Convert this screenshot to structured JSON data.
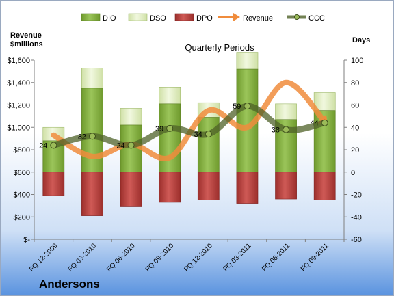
{
  "chart_data": {
    "type": "bar",
    "title": "Quarterly Periods",
    "company": "Andersons",
    "left_axis_label": [
      "Revenue",
      "$millions"
    ],
    "right_axis_label": "Days",
    "categories": [
      "FQ 12-2009",
      "FQ 03-2010",
      "FQ 06-2010",
      "FQ 09-2010",
      "FQ 12-2010",
      "FQ 03-2011",
      "FQ 06-2011",
      "FQ 09-2011"
    ],
    "left_axis": {
      "min": 0,
      "max": 1600,
      "step": 200,
      "tick_labels": [
        "$-",
        "$200",
        "$400",
        "$600",
        "$800",
        "$1,000",
        "$1,200",
        "$1,400",
        "$1,600"
      ]
    },
    "right_axis": {
      "min": -60,
      "max": 100,
      "step": 20,
      "tick_labels": [
        "-60",
        "-40",
        "-20",
        "0",
        "20",
        "40",
        "60",
        "80",
        "100"
      ]
    },
    "legend": {
      "placement": "top",
      "entries": [
        "DIO",
        "DSO",
        "DPO",
        "Revenue",
        "CCC"
      ]
    },
    "series": [
      {
        "name": "DIO",
        "axis": "right",
        "values": [
          28,
          75,
          42,
          61,
          49,
          92,
          47,
          55
        ]
      },
      {
        "name": "DSO",
        "axis": "right",
        "values": [
          12,
          18,
          15,
          15,
          13,
          15,
          14,
          16
        ]
      },
      {
        "name": "DPO",
        "axis": "right",
        "values": [
          -21,
          -39,
          -31,
          -27,
          -25,
          -28,
          -24,
          -25
        ]
      },
      {
        "name": "Revenue",
        "axis": "left",
        "values": [
          930,
          740,
          850,
          730,
          1150,
          1000,
          1400,
          1050
        ]
      },
      {
        "name": "CCC",
        "axis": "right",
        "values": [
          24,
          32,
          24,
          39,
          34,
          59,
          38,
          44
        ]
      }
    ],
    "ccc_labels": [
      "24",
      "32",
      "24",
      "39",
      "34",
      "59",
      "38",
      "44"
    ],
    "colors": {
      "DIO": "#8db548",
      "DSO": "#e3efc5",
      "DPO": "#be4b48",
      "Revenue": "#f08c3c",
      "CCC": "#4f6228"
    },
    "grid": false
  }
}
